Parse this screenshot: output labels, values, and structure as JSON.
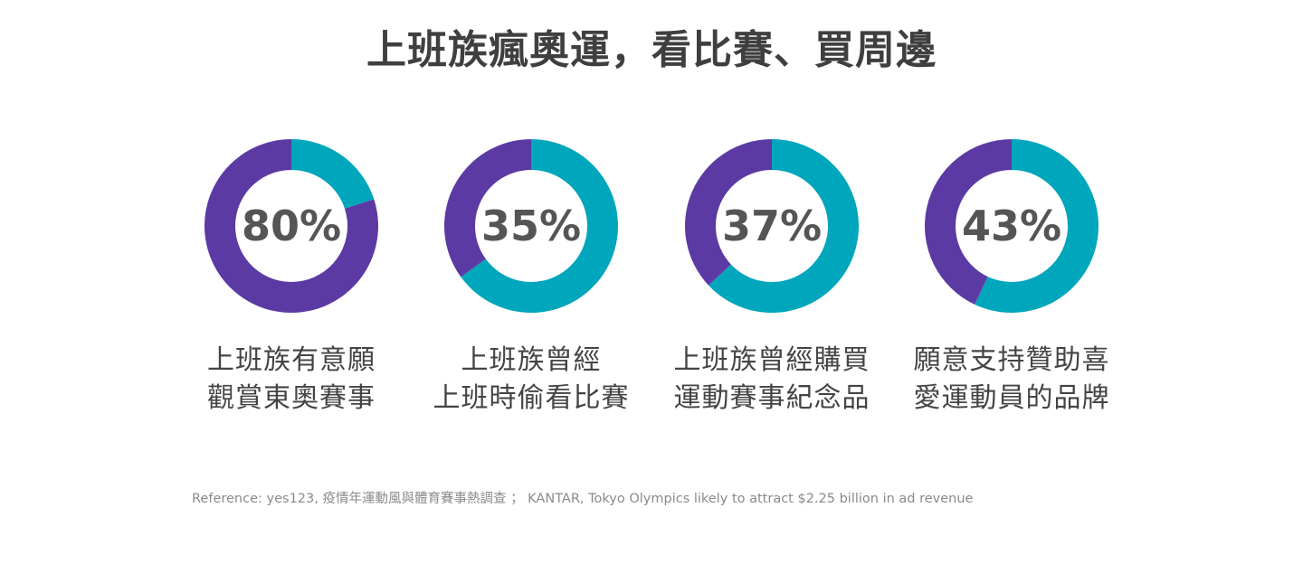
{
  "title": "上班族瘋奧運，看比賽、買周邊",
  "colors": {
    "teal": "#00a6bb",
    "purple": "#5b3aa4",
    "text": "#555555"
  },
  "chart_data": [
    {
      "type": "pie",
      "variant": "donut",
      "value_label": "80%",
      "highlight_percent": 80,
      "highlight_color": "purple",
      "slices": [
        {
          "value": 20,
          "color": "#00a6bb"
        },
        {
          "value": 80,
          "color": "#5b3aa4"
        }
      ],
      "caption_lines": [
        "上班族有意願",
        "觀賞東奧賽事"
      ]
    },
    {
      "type": "pie",
      "variant": "donut",
      "value_label": "35%",
      "highlight_percent": 35,
      "highlight_color": "purple",
      "slices": [
        {
          "value": 65,
          "color": "#00a6bb"
        },
        {
          "value": 35,
          "color": "#5b3aa4"
        }
      ],
      "caption_lines": [
        "上班族曾經",
        "上班時偷看比賽"
      ]
    },
    {
      "type": "pie",
      "variant": "donut",
      "value_label": "37%",
      "highlight_percent": 37,
      "highlight_color": "purple",
      "slices": [
        {
          "value": 63,
          "color": "#00a6bb"
        },
        {
          "value": 37,
          "color": "#5b3aa4"
        }
      ],
      "caption_lines": [
        "上班族曾經購買",
        "運動賽事紀念品"
      ]
    },
    {
      "type": "pie",
      "variant": "donut",
      "value_label": "43%",
      "highlight_percent": 43,
      "highlight_color": "purple",
      "slices": [
        {
          "value": 57,
          "color": "#00a6bb"
        },
        {
          "value": 43,
          "color": "#5b3aa4"
        }
      ],
      "caption_lines": [
        "願意支持贊助喜",
        "愛運動員的品牌"
      ]
    }
  ],
  "reference": "Reference: yes123, 疫情年運動風與體育賽事熱調查 ； KANTAR, Tokyo Olympics likely to attract $2.25 billion in ad revenue"
}
